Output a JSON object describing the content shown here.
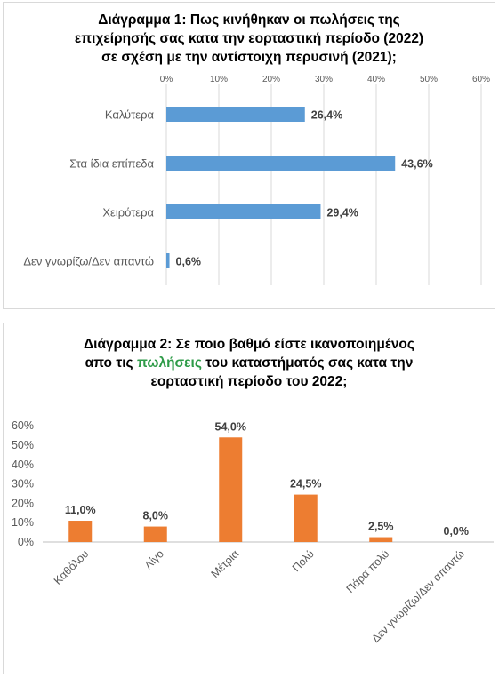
{
  "chart_data": [
    {
      "type": "bar",
      "orientation": "horizontal",
      "title_lines": [
        "Διάγραμμα 1: Πως κινήθηκαν οι πωλήσεις της",
        "επιχείρησής σας κατα την εορταστική περίοδο (2022)",
        "σε σχέση με την αντίστοιχη περυσινή (2021);"
      ],
      "categories": [
        "Καλύτερα",
        "Στα ίδια επίπεδα",
        "Χειρότερα",
        "Δεν γνωρίζω/Δεν απαντώ"
      ],
      "values": [
        26.4,
        43.6,
        29.4,
        0.6
      ],
      "value_labels": [
        "26,4%",
        "43,6%",
        "29,4%",
        "0,6%"
      ],
      "xlim": [
        0,
        60
      ],
      "ticks": [
        "0%",
        "10%",
        "20%",
        "30%",
        "40%",
        "50%",
        "60%"
      ],
      "axis_position": "top",
      "grid": true,
      "bar_color": "#5b9bd5"
    },
    {
      "type": "bar",
      "orientation": "vertical",
      "title_parts": [
        {
          "text": "Διάγραμμα 2: Σε ποιο βαθμό είστε ικανοποιημένος",
          "highlight": false
        },
        {
          "text": "απο τις ",
          "highlight": false
        },
        {
          "text": "πωλήσεις",
          "highlight": true
        },
        {
          "text": " του καταστήματός σας κατα την",
          "highlight": false
        },
        {
          "text": "εορταστική περίοδο του 2022;",
          "highlight": false
        }
      ],
      "categories": [
        "Καθόλου",
        "Λίγο",
        "Μέτρια",
        "Πολύ",
        "Πάρα πολύ",
        "Δεν γνωρίζω/Δεν απαντώ"
      ],
      "values": [
        11.0,
        8.0,
        54.0,
        24.5,
        2.5,
        0.0
      ],
      "value_labels": [
        "11,0%",
        "8,0%",
        "54,0%",
        "24,5%",
        "2,5%",
        "0,0%"
      ],
      "ylim": [
        0,
        60
      ],
      "ticks": [
        "0%",
        "10%",
        "20%",
        "30%",
        "40%",
        "50%",
        "60%"
      ],
      "grid": false,
      "bar_color": "#ed7d31",
      "highlight_color": "#2e9b48"
    }
  ]
}
